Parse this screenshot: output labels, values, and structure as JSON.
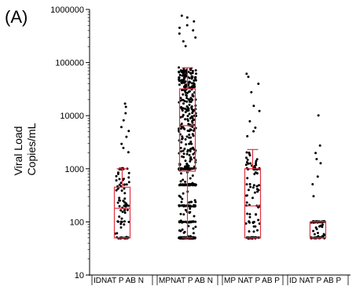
{
  "panel_label": "(A)",
  "chart_data": {
    "type": "scatter",
    "subtype": "jittered strip plot with box plots",
    "ylabel_lines": [
      "Viral Load",
      "Copies/mL"
    ],
    "yscale": "log",
    "ylim": [
      10,
      1000000
    ],
    "yticks": [
      10,
      100,
      1000,
      10000,
      100000,
      1000000
    ],
    "ytick_labels": [
      "10",
      "100",
      "1000",
      "10000",
      "100000",
      "1000000"
    ],
    "categories": [
      "IDNAT P AB N",
      "MPNAT P AB N",
      "MP NAT P AB P",
      "ID NAT P AB P"
    ],
    "box_color": "#e03040",
    "point_color": "#000000",
    "boxes": [
      {
        "category": "IDNAT P AB N",
        "whisker_low": 50,
        "q1": 50,
        "median": 180,
        "q3": 450,
        "whisker_high": 1000
      },
      {
        "category": "MPNAT P AB N",
        "whisker_low": 50,
        "q1": 900,
        "median": 6500,
        "q3": 32000,
        "whisker_high": 80000
      },
      {
        "category": "MP NAT P AB P",
        "whisker_low": 50,
        "q1": 50,
        "median": 200,
        "q3": 1000,
        "whisker_high": 2300
      },
      {
        "category": "ID NAT P AB P",
        "whisker_low": 50,
        "q1": 50,
        "median": 100,
        "q3": 100,
        "whisker_high": 100
      }
    ],
    "samples": [
      {
        "category": "IDNAT P AB N",
        "n": 90,
        "outliers_high": [
          17000,
          15000,
          11000,
          8000,
          6000,
          5000,
          4000,
          3000,
          2500,
          2000
        ]
      },
      {
        "category": "MPNAT P AB N",
        "n": 520,
        "outliers_high": [
          750000,
          700000,
          600000,
          500000,
          450000,
          400000,
          350000,
          300000,
          250000,
          200000
        ]
      },
      {
        "category": "MP NAT P AB P",
        "n": 100,
        "outliers_high": [
          60000,
          55000,
          40000,
          28000,
          15000,
          12000,
          8000,
          6000,
          5000,
          4000
        ]
      },
      {
        "category": "ID NAT P AB P",
        "n": 70,
        "outliers_high": [
          10000,
          2700,
          2000,
          1500,
          1300,
          700,
          500,
          300
        ]
      }
    ]
  }
}
